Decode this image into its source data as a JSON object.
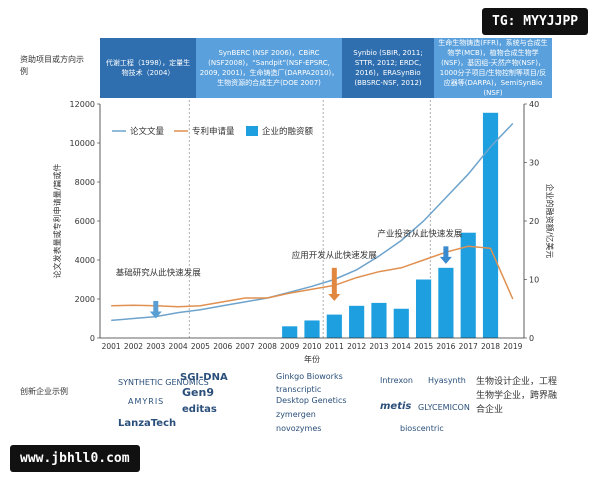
{
  "watermark_top": "TG: MYYJJPP",
  "watermark_bottom": "www.jbhll0.com",
  "funding_row_label": "资助项目或方向示例",
  "funding_bands": [
    "代谢工程（1998），定量生物技术（2004）",
    "SynBERC (NSF 2006)，CBiRC (NSF2008)，“Sandpit”(NSF-EPSRC, 2009, 2001)，生命铸造厂(DARPA2010)，生物资源的合成生产(DOE 2007)",
    "Synbio (SBIR, 2011; STTR, 2012; ERDC, 2016)，ERASynBio (BBSRC-NSF, 2012)",
    "生命生物铸造(FFR)，系统与合成生物学(MCB)，植物合成生物学(NSF)，基因组-天然产物(NSF)，1000分子项目/生物控制等项目/反应器等(DARPA)，SemiSynBio (NSF)"
  ],
  "companies_row_label": "创新企业示例",
  "company_logos": [
    "SYNTHETIC GENOMICS",
    "SGI-DNA",
    "AMYRIS",
    "Gen9",
    "editas",
    "LanzaTech",
    "Ginkgo Bioworks",
    "Desktop Genetics",
    "transcriptic",
    "zymergen",
    "novozymes",
    "Intrexon",
    "Hyasynth",
    "metis",
    "GLYCEMICON",
    "bioscentric"
  ],
  "company_category": "生物设计企业，工程生物学企业，跨界融合企业",
  "chart_data": {
    "type": "line",
    "x": [
      2001,
      2002,
      2003,
      2004,
      2005,
      2006,
      2007,
      2008,
      2009,
      2010,
      2011,
      2012,
      2013,
      2014,
      2015,
      2016,
      2017,
      2018,
      2019
    ],
    "xlabel": "年份",
    "ylabel": "论文发表量或专利申请量/篇或件",
    "y2label": "企业的融资额/亿美元",
    "ylim": [
      0,
      12000
    ],
    "y2lim": [
      0,
      40
    ],
    "yticks": [
      0,
      2000,
      4000,
      6000,
      8000,
      10000,
      12000
    ],
    "y2ticks": [
      0,
      10,
      20,
      30,
      40
    ],
    "series": [
      {
        "name": "论文文量",
        "type": "line",
        "axis": "left",
        "color": "#6ea3cc",
        "values": [
          900,
          1000,
          1100,
          1300,
          1450,
          1650,
          1850,
          2050,
          2350,
          2650,
          3000,
          3500,
          4200,
          5000,
          6000,
          7200,
          8400,
          9800,
          11000
        ]
      },
      {
        "name": "专利申请量",
        "type": "line",
        "axis": "left",
        "color": "#e09050",
        "values": [
          1650,
          1680,
          1650,
          1600,
          1650,
          1850,
          2050,
          2050,
          2300,
          2500,
          2700,
          3100,
          3400,
          3600,
          4000,
          4400,
          4700,
          4600,
          2000
        ]
      },
      {
        "name": "企业的融资额",
        "type": "bar",
        "axis": "right",
        "color": "#1ea0e0",
        "values": [
          null,
          null,
          null,
          null,
          null,
          null,
          null,
          null,
          2,
          3,
          4,
          5.5,
          6,
          5,
          10,
          12,
          18,
          38.5,
          null
        ]
      }
    ],
    "annotations": [
      {
        "text": "基础研究从此快速发展",
        "x": 2003,
        "color": "#5a9fd4"
      },
      {
        "text": "应用开发从此快速发展",
        "x": 2011,
        "color": "#e08840"
      },
      {
        "text": "产业投资从此快速发展",
        "x": 2016,
        "color": "#3a8ad0"
      }
    ],
    "phase_dividers": [
      2004.5,
      2010.5,
      2015.3
    ],
    "grid": false,
    "legend": "top-left"
  }
}
